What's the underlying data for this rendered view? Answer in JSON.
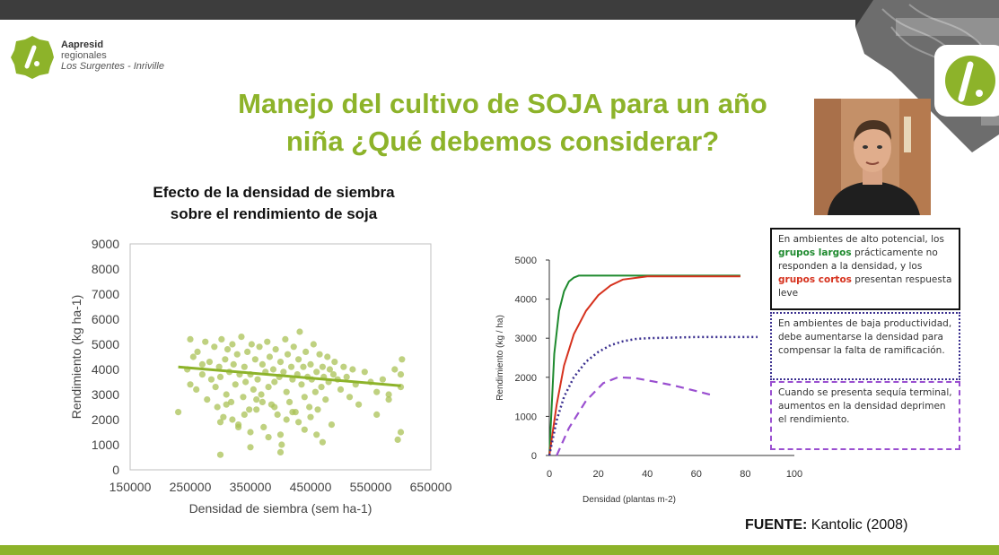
{
  "slide": {
    "title_line1": "Manejo del cultivo de SOJA para un año",
    "title_line2": "niña ¿Qué debemos considerar?",
    "source_label": "FUENTE:",
    "source_value": "Kantolic (2008)"
  },
  "logo": {
    "brand": "Aapresid",
    "line2": "regionales",
    "line3": "Los Surgentes - Inriville",
    "icon": "aapresid-logo-icon"
  },
  "webcam": {
    "icon": "presenter-webcam"
  },
  "colors": {
    "accent": "#8db32a",
    "dark_bar": "#3d3d3d",
    "dark_green": "#1e8a2e",
    "red": "#d6321e",
    "navy": "#3a2f8f",
    "purple": "#9a4fd0"
  },
  "chart_data": [
    {
      "type": "scatter",
      "title_line1": "Efecto de la densidad de siembra",
      "title_line2": "sobre el rendimiento de soja",
      "xlabel": "Densidad de siembra (sem ha-1)",
      "ylabel": "Rendimiento (kg ha-1)",
      "xlim": [
        150000,
        650000
      ],
      "ylim": [
        0,
        9000
      ],
      "x_ticks": [
        "150000",
        "250000",
        "350000",
        "450000",
        "550000",
        "650000"
      ],
      "y_ticks": [
        "0",
        "1000",
        "2000",
        "3000",
        "4000",
        "5000",
        "6000",
        "7000",
        "8000",
        "9000"
      ],
      "trendline": {
        "x": [
          230000,
          600000
        ],
        "y": [
          4100,
          3350
        ]
      },
      "points": {
        "x": [
          230000,
          245000,
          250000,
          255000,
          260000,
          262000,
          270000,
          275000,
          278000,
          282000,
          285000,
          290000,
          292000,
          295000,
          298000,
          300000,
          302000,
          305000,
          308000,
          310000,
          312000,
          315000,
          318000,
          320000,
          322000,
          325000,
          328000,
          330000,
          332000,
          335000,
          338000,
          340000,
          342000,
          345000,
          348000,
          350000,
          352000,
          355000,
          358000,
          360000,
          362000,
          365000,
          368000,
          370000,
          372000,
          375000,
          378000,
          380000,
          382000,
          385000,
          388000,
          390000,
          392000,
          395000,
          398000,
          400000,
          402000,
          405000,
          408000,
          410000,
          412000,
          415000,
          418000,
          420000,
          422000,
          425000,
          428000,
          430000,
          432000,
          435000,
          438000,
          440000,
          442000,
          445000,
          448000,
          450000,
          452000,
          455000,
          458000,
          460000,
          462000,
          465000,
          468000,
          470000,
          472000,
          475000,
          478000,
          480000,
          482000,
          485000,
          488000,
          490000,
          495000,
          500000,
          505000,
          510000,
          515000,
          520000,
          525000,
          530000,
          540000,
          550000,
          560000,
          570000,
          580000,
          590000,
          595000,
          600000,
          600000,
          600000,
          602000,
          350000,
          350000,
          400000,
          400000,
          300000,
          300000,
          450000,
          420000,
          380000,
          330000,
          360000,
          410000,
          440000,
          470000,
          320000,
          340000,
          390000,
          430000,
          460000,
          310000,
          370000,
          250000,
          270000,
          560000,
          580000
        ],
        "y": [
          2300,
          4000,
          5200,
          4500,
          3200,
          4700,
          3800,
          5100,
          2800,
          4300,
          3600,
          4900,
          3300,
          2500,
          4100,
          3700,
          5200,
          2100,
          4400,
          3000,
          4800,
          3900,
          2700,
          5000,
          4200,
          3400,
          4600,
          1800,
          3800,
          5300,
          2900,
          4100,
          3500,
          4700,
          2400,
          3800,
          5000,
          3200,
          4400,
          2800,
          3600,
          4900,
          3000,
          4200,
          1700,
          3900,
          5100,
          3300,
          4500,
          2600,
          4000,
          3500,
          4800,
          2200,
          3700,
          4300,
          1000,
          3900,
          5200,
          3100,
          4600,
          2700,
          4100,
          3600,
          4900,
          2300,
          3800,
          4400,
          5500,
          3400,
          4100,
          2900,
          4700,
          3700,
          2500,
          4200,
          3600,
          5000,
          3100,
          3900,
          2400,
          4600,
          3300,
          4100,
          3700,
          2800,
          4500,
          3500,
          4000,
          1800,
          3800,
          4300,
          3600,
          3200,
          4100,
          3700,
          2900,
          4000,
          3400,
          2600,
          3900,
          3500,
          3100,
          3600,
          2800,
          4000,
          1200,
          3300,
          1500,
          3800,
          4400,
          900,
          1500,
          700,
          1400,
          600,
          1900,
          2100,
          2300,
          1300,
          1700,
          2400,
          2000,
          1600,
          1100,
          2000,
          2200,
          2500,
          1900,
          1400,
          2600,
          2700,
          3400,
          4200,
          2200,
          3000
        ]
      }
    },
    {
      "type": "line",
      "xlabel": "Densidad (plantas m-2)",
      "ylabel": "Rendimiento (kg / ha)",
      "xlim": [
        0,
        100
      ],
      "ylim": [
        0,
        5000
      ],
      "x_ticks": [
        "0",
        "20",
        "40",
        "60",
        "80",
        "100"
      ],
      "y_ticks": [
        "0",
        "1000",
        "2000",
        "3000",
        "4000",
        "5000"
      ],
      "series": [
        {
          "style": "solid",
          "color": "#1e8a2e",
          "x": [
            0,
            2,
            4,
            6,
            8,
            10,
            12,
            14,
            16,
            78
          ],
          "y": [
            0,
            2600,
            3700,
            4200,
            4450,
            4550,
            4600,
            4600,
            4600,
            4600
          ]
        },
        {
          "style": "solid",
          "color": "#d6321e",
          "x": [
            0,
            3,
            6,
            10,
            15,
            20,
            25,
            30,
            40,
            50,
            78
          ],
          "y": [
            0,
            1300,
            2300,
            3100,
            3700,
            4100,
            4350,
            4500,
            4580,
            4580,
            4580
          ]
        },
        {
          "style": "dotted",
          "color": "#3a2f8f",
          "x": [
            0,
            3,
            6,
            10,
            15,
            20,
            25,
            30,
            35,
            40,
            60,
            85
          ],
          "y": [
            0,
            900,
            1500,
            2000,
            2400,
            2650,
            2820,
            2920,
            2980,
            3000,
            3030,
            3030
          ]
        },
        {
          "style": "dashed",
          "color": "#9a4fd0",
          "x": [
            3,
            8,
            15,
            22,
            28,
            35,
            42,
            50,
            58,
            66
          ],
          "y": [
            0,
            700,
            1400,
            1850,
            2000,
            1980,
            1900,
            1800,
            1680,
            1550
          ]
        }
      ],
      "annotations": [
        {
          "parts": [
            {
              "text": "En ambientes de alto potencial, los ",
              "style": "normal"
            },
            {
              "text": "grupos largos",
              "style": "green"
            },
            {
              "text": " prácticamente no responden a la densidad, y los ",
              "style": "normal"
            },
            {
              "text": "grupos cortos",
              "style": "red"
            },
            {
              "text": " presentan respuesta leve",
              "style": "normal"
            }
          ]
        },
        {
          "text": "En ambientes de baja productividad, debe aumentarse la densidad para compensar la falta de ramificación."
        },
        {
          "text": "Cuando se presenta sequía terminal, aumentos en la densidad deprimen el rendimiento."
        }
      ]
    }
  ]
}
